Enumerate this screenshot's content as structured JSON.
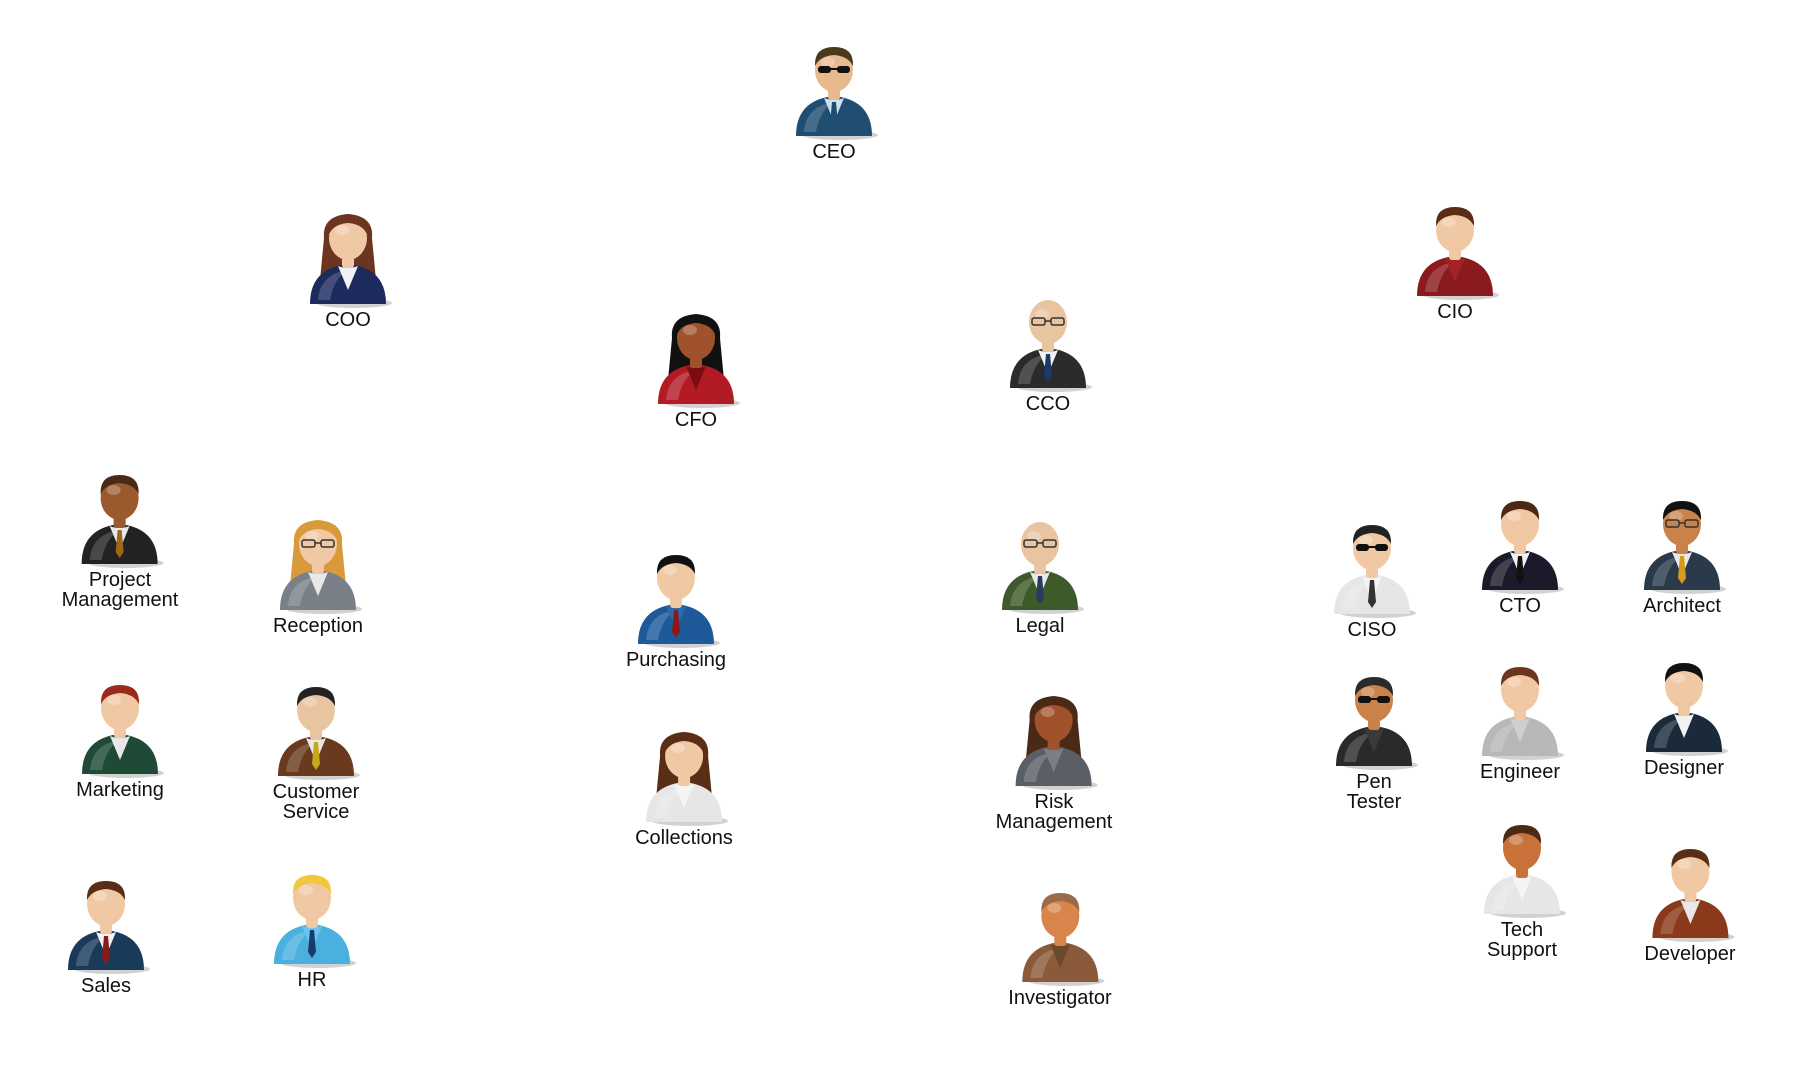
{
  "people": [
    {
      "id": "ceo",
      "label": "CEO",
      "icon": "executive-sunglasses-avatar-icon",
      "suit": "#1f4e72",
      "skin": "#e8b98c",
      "hair": "#4a3a1c",
      "shirt": "#cfe0ec",
      "tie": "#1f4e72",
      "glasses": "sunglasses",
      "longhair": false
    },
    {
      "id": "coo",
      "label": "COO",
      "icon": "businesswoman-avatar-icon",
      "suit": "#1c2a5c",
      "skin": "#f0c9a4",
      "hair": "#6b3520",
      "shirt": "#f2f2f2",
      "tie": "none",
      "glasses": "none",
      "longhair": true
    },
    {
      "id": "cfo",
      "label": "CFO",
      "icon": "businesswoman-red-suit-avatar-icon",
      "suit": "#b31b24",
      "skin": "#a0522d",
      "hair": "#111111",
      "shirt": "#7a0c12",
      "tie": "none",
      "glasses": "none",
      "longhair": true
    },
    {
      "id": "cco",
      "label": "CCO",
      "icon": "bald-man-glasses-avatar-icon",
      "suit": "#2b2b2b",
      "skin": "#e8c4a0",
      "hair": "none",
      "shirt": "#f2f2f2",
      "tie": "#1a3a6a",
      "glasses": "glasses",
      "longhair": false
    },
    {
      "id": "cio",
      "label": "CIO",
      "icon": "man-red-sweater-avatar-icon",
      "suit": "#8b1a1f",
      "skin": "#f0c9a4",
      "hair": "#5a2e16",
      "shirt": "#a32228",
      "tie": "none",
      "glasses": "none",
      "longhair": false
    },
    {
      "id": "project-management",
      "label": "Project\nManagement",
      "icon": "man-dark-suit-avatar-icon",
      "suit": "#222222",
      "skin": "#9a5a2e",
      "hair": "#4a2a14",
      "shirt": "#e8e8e8",
      "tie": "#a0661a",
      "glasses": "none",
      "longhair": false
    },
    {
      "id": "reception",
      "label": "Reception",
      "icon": "receptionist-phone-avatar-icon",
      "suit": "#7a8088",
      "skin": "#f0c9a4",
      "hair": "#d89a3a",
      "shirt": "#e8e8e8",
      "tie": "none",
      "glasses": "glasses",
      "longhair": true
    },
    {
      "id": "purchasing",
      "label": "Purchasing",
      "icon": "man-blue-shirt-avatar-icon",
      "suit": "#1e5a9a",
      "skin": "#f0c9a4",
      "hair": "#111111",
      "shirt": "#2a6ab0",
      "tie": "#8a1a1a",
      "glasses": "none",
      "longhair": false
    },
    {
      "id": "legal",
      "label": "Legal",
      "icon": "bald-man-green-suit-avatar-icon",
      "suit": "#3e5a2a",
      "skin": "#e8c4a0",
      "hair": "none",
      "shirt": "#e8e8e8",
      "tie": "#2a3a5a",
      "glasses": "glasses",
      "longhair": false
    },
    {
      "id": "ciso",
      "label": "CISO",
      "icon": "agent-sunglasses-avatar-icon",
      "suit": "#e6e6e6",
      "skin": "#f0c9a4",
      "hair": "#222222",
      "shirt": "#f4f4f4",
      "tie": "#333333",
      "glasses": "sunglasses",
      "longhair": false
    },
    {
      "id": "cto",
      "label": "CTO",
      "icon": "man-black-suit-avatar-icon",
      "suit": "#1a1a2a",
      "skin": "#f0c9a4",
      "hair": "#4a2a14",
      "shirt": "#f2f2f2",
      "tie": "#111111",
      "glasses": "none",
      "longhair": false
    },
    {
      "id": "architect",
      "label": "Architect",
      "icon": "spiky-hair-glasses-avatar-icon",
      "suit": "#2a3a4a",
      "skin": "#c8824a",
      "hair": "#111111",
      "shirt": "#e8e8e8",
      "tie": "#d89a1a",
      "glasses": "glasses",
      "longhair": false
    },
    {
      "id": "marketing",
      "label": "Marketing",
      "icon": "woman-green-suit-avatar-icon",
      "suit": "#1e4a36",
      "skin": "#f0c9a4",
      "hair": "#9a2a1a",
      "shirt": "#e8e8e8",
      "tie": "none",
      "glasses": "none",
      "longhair": false
    },
    {
      "id": "customer-service",
      "label": "Customer\nService",
      "icon": "man-brown-suit-avatar-icon",
      "suit": "#6a3a1e",
      "skin": "#e8c4a0",
      "hair": "#222222",
      "shirt": "#e8e8e8",
      "tie": "#c8a81a",
      "glasses": "none",
      "longhair": false
    },
    {
      "id": "collections",
      "label": "Collections",
      "icon": "headset-woman-avatar-icon",
      "suit": "#e6e6e6",
      "skin": "#f0c9a4",
      "hair": "#5a2e16",
      "shirt": "#f4f4f4",
      "tie": "none",
      "glasses": "none",
      "longhair": true
    },
    {
      "id": "risk-management",
      "label": "Risk\nManagement",
      "icon": "woman-gray-suit-avatar-icon",
      "suit": "#5a5e66",
      "skin": "#a0522d",
      "hair": "#4a2a14",
      "shirt": "#7a7e86",
      "tie": "none",
      "glasses": "none",
      "longhair": true
    },
    {
      "id": "pen-tester",
      "label": "Pen\nTester",
      "icon": "spy-hat-avatar-icon",
      "suit": "#2a2a2a",
      "skin": "#c8824a",
      "hair": "#2a2a2a",
      "shirt": "#3a3a3a",
      "tie": "none",
      "glasses": "sunglasses",
      "longhair": false
    },
    {
      "id": "engineer",
      "label": "Engineer",
      "icon": "man-gray-shirt-avatar-icon",
      "suit": "#b8b8b8",
      "skin": "#f0c9a4",
      "hair": "#6b3520",
      "shirt": "#cfcfcf",
      "tie": "none",
      "glasses": "none",
      "longhair": false
    },
    {
      "id": "designer",
      "label": "Designer",
      "icon": "man-dark-jacket-avatar-icon",
      "suit": "#1a2a3a",
      "skin": "#f0c9a4",
      "hair": "#111111",
      "shirt": "#f2f2f2",
      "tie": "none",
      "glasses": "none",
      "longhair": false
    },
    {
      "id": "sales",
      "label": "Sales",
      "icon": "man-navy-suit-avatar-icon",
      "suit": "#1a3a5a",
      "skin": "#f0c9a4",
      "hair": "#5a2e16",
      "shirt": "#f2f2f2",
      "tie": "#8a1a1a",
      "glasses": "none",
      "longhair": false
    },
    {
      "id": "hr",
      "label": "HR",
      "icon": "blonde-man-blue-shirt-avatar-icon",
      "suit": "#4ab0e0",
      "skin": "#f0c9a4",
      "hair": "#f0c83a",
      "shirt": "#6ac4ee",
      "tie": "#1a3a6a",
      "glasses": "none",
      "longhair": false
    },
    {
      "id": "investigator",
      "label": "Investigator",
      "icon": "detective-pipe-avatar-icon",
      "suit": "#8a5a3a",
      "skin": "#d8844a",
      "hair": "#9a6a4a",
      "shirt": "#6a4a2a",
      "tie": "none",
      "glasses": "none",
      "longhair": false
    },
    {
      "id": "tech-support",
      "label": "Tech\nSupport",
      "icon": "headset-man-avatar-icon",
      "suit": "#e6e6e6",
      "skin": "#c8723a",
      "hair": "#4a2a14",
      "shirt": "#f4f4f4",
      "tie": "none",
      "glasses": "none",
      "longhair": false
    },
    {
      "id": "developer",
      "label": "Developer",
      "icon": "man-brown-sweater-avatar-icon",
      "suit": "#8a3a1a",
      "skin": "#f0c9a4",
      "hair": "#5a2e16",
      "shirt": "#e8e8e8",
      "tie": "none",
      "glasses": "none",
      "longhair": false
    }
  ]
}
